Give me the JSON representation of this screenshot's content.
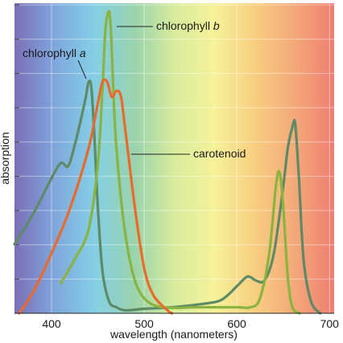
{
  "chart_data": {
    "type": "line",
    "xlabel": "wavelength (nanometers)",
    "ylabel": "absorption",
    "xlim": [
      360,
      705
    ],
    "ylim": [
      0,
      1
    ],
    "x_ticks": [
      400,
      500,
      600,
      700
    ],
    "y_grid_count": 9,
    "grid": true,
    "background": "visible-spectrum gradient",
    "spectrum_colors": [
      "#7a6fb8",
      "#7fa6dd",
      "#84cfe6",
      "#9ad3ad",
      "#d7ec9c",
      "#f6f29a",
      "#f7cf81",
      "#f4a979",
      "#ef7e72"
    ],
    "series": [
      {
        "label_parts": [
          "chlorophyll ",
          "a"
        ],
        "color": "#5e8a65",
        "x": [
          360,
          380,
          400,
          410,
          418,
          425,
          432,
          437,
          440,
          443,
          446,
          450,
          455,
          462,
          470,
          480,
          500,
          530,
          560,
          580,
          590,
          600,
          610,
          615,
          620,
          630,
          640,
          650,
          655,
          660,
          663,
          667,
          672,
          680,
          690
        ],
        "y": [
          0.23,
          0.33,
          0.45,
          0.5,
          0.49,
          0.56,
          0.65,
          0.72,
          0.77,
          0.75,
          0.6,
          0.35,
          0.14,
          0.04,
          0.02,
          0.01,
          0.015,
          0.02,
          0.03,
          0.04,
          0.06,
          0.09,
          0.12,
          0.12,
          0.11,
          0.11,
          0.2,
          0.42,
          0.55,
          0.62,
          0.63,
          0.45,
          0.18,
          0.04,
          0.0
        ]
      },
      {
        "label_parts": [
          "chlorophyll ",
          "b"
        ],
        "color": "#8ab43f",
        "x": [
          410,
          425,
          440,
          450,
          455,
          458,
          461,
          463,
          465,
          467,
          470,
          478,
          488,
          500,
          520,
          560,
          600,
          615,
          625,
          635,
          642,
          646,
          650,
          655,
          660,
          668
        ],
        "y": [
          0.1,
          0.18,
          0.28,
          0.5,
          0.75,
          0.94,
          1.0,
          0.99,
          0.88,
          0.72,
          0.55,
          0.3,
          0.13,
          0.05,
          0.02,
          0.02,
          0.02,
          0.02,
          0.05,
          0.2,
          0.42,
          0.47,
          0.36,
          0.12,
          0.02,
          0.0
        ]
      },
      {
        "label_parts": [
          "carotenoid",
          ""
        ],
        "color": "#ea6a2a",
        "x": [
          365,
          380,
          400,
          420,
          440,
          450,
          455,
          460,
          465,
          470,
          475,
          480,
          490,
          500,
          510,
          525,
          530
        ],
        "y": [
          0.0,
          0.07,
          0.2,
          0.35,
          0.55,
          0.7,
          0.77,
          0.77,
          0.72,
          0.74,
          0.72,
          0.6,
          0.35,
          0.15,
          0.06,
          0.01,
          0.0
        ]
      }
    ]
  }
}
